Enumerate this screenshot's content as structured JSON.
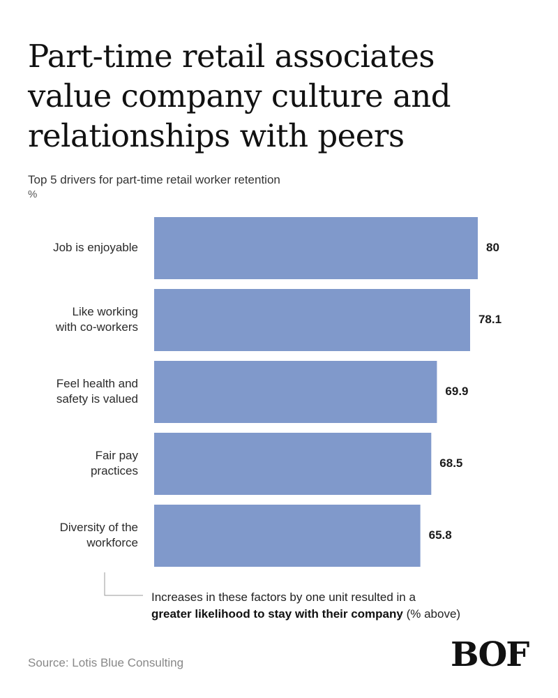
{
  "header": {
    "title": "Part-time retail associates\nvalue company culture and\nrelationships with peers",
    "subtitle": "Top 5 drivers for part-time retail worker retention",
    "unit": "%"
  },
  "chart_data": {
    "type": "bar",
    "orientation": "horizontal",
    "categories": [
      [
        "Job is enjoyable"
      ],
      [
        "Like working",
        "with co-workers"
      ],
      [
        "Feel health and",
        "safety is valued"
      ],
      [
        "Fair pay",
        "practices"
      ],
      [
        "Diversity of the",
        "workforce"
      ]
    ],
    "values": [
      80,
      78.1,
      69.9,
      68.5,
      65.8
    ],
    "value_labels": [
      "80",
      "78.1",
      "69.9",
      "68.5",
      "65.8"
    ],
    "xlim": [
      0,
      80
    ],
    "bar_color": "#8099cb",
    "grid": false
  },
  "note": {
    "line1": "Increases in these factors by one unit resulted in a",
    "line2_bold": "greater likelihood to stay with their company",
    "line2_rest": " (% above)"
  },
  "footer": {
    "source": "Source: Lotis Blue Consulting",
    "logo": "BOF"
  },
  "colors": {
    "bar": "#8099cb",
    "connector": "#9a9a9a",
    "source_text": "#888888"
  }
}
